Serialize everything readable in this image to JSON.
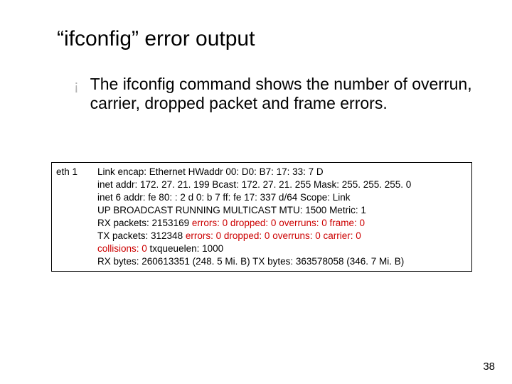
{
  "title": "“ifconfig” error output",
  "bullet": {
    "mark": "¡",
    "text": "The ifconfig command shows the number of overrun, carrier, dropped packet and frame errors."
  },
  "ifconfig": {
    "iface": "eth 1",
    "l1": {
      "a": "  Link encap: Ethernet  HWaddr 00: D0: B7: 17: 33: 7 D"
    },
    "l2": {
      "a": "inet addr: 172. 27. 21. 199  Bcast: 172. 27. 21. 255  Mask: 255. 255. 255. 0"
    },
    "l3": {
      "a": "inet 6 addr: fe 80: : 2 d 0: b 7 ff: fe 17: 337 d/64 Scope: Link"
    },
    "l4": {
      "a": "UP BROADCAST RUNNING MULTICAST  MTU: 1500  Metric: 1"
    },
    "l5": {
      "a": "RX packets: 2153169 ",
      "e1": "errors: 0",
      "b": " ",
      "e2": "dropped: 0",
      "c": " ",
      "e3": "overruns: 0",
      "d": " ",
      "e4": "frame: 0"
    },
    "l6": {
      "a": "TX packets: 312348 ",
      "e1": "errors: 0",
      "b": " ",
      "e2": "dropped: 0",
      "c": " ",
      "e3": "overruns: 0",
      "d": " ",
      "e4": "carrier: 0"
    },
    "l7": {
      "e1": "collisions: 0",
      "a": " txqueuelen: 1000"
    },
    "l8": {
      "a": "RX bytes: 260613351 (248. 5 Mi. B)  TX bytes: 363578058 (346. 7 Mi. B)"
    },
    "error_color": "#cc0000"
  },
  "page_number": "38",
  "colors": {
    "bullet_mark": "#b3b3b3",
    "text": "#000000",
    "border": "#000000",
    "background": "#ffffff"
  }
}
